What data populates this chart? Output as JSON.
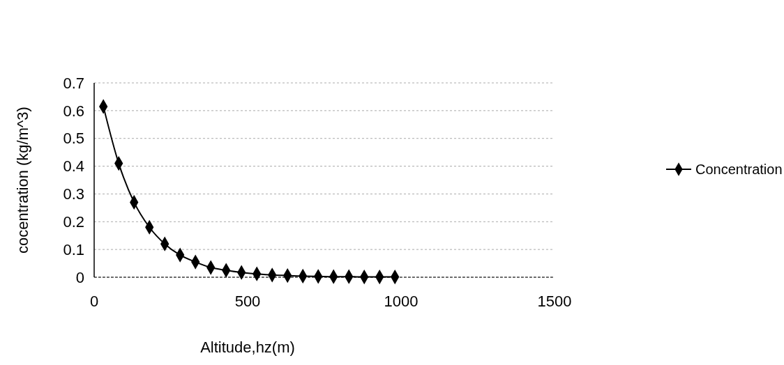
{
  "chart_data": {
    "type": "line",
    "xlabel": "Altitude,hz(m)",
    "ylabel": "cocentration (kg/m^3)",
    "x": [
      30,
      80,
      130,
      180,
      230,
      280,
      330,
      380,
      430,
      480,
      530,
      580,
      630,
      680,
      730,
      780,
      830,
      880,
      930,
      980
    ],
    "series": [
      {
        "name": "Concentration",
        "color": "#000000",
        "values": [
          0.615,
          0.41,
          0.27,
          0.18,
          0.12,
          0.08,
          0.055,
          0.035,
          0.025,
          0.017,
          0.012,
          0.008,
          0.006,
          0.004,
          0.003,
          0.002,
          0.002,
          0.001,
          0.001,
          0.001
        ]
      }
    ],
    "xlim": [
      0,
      1500
    ],
    "xticks": [
      0,
      500,
      1000,
      1500
    ],
    "ylim": [
      0,
      0.7
    ],
    "yticks": [
      0,
      0.1,
      0.2,
      0.3,
      0.4,
      0.5,
      0.6,
      0.7
    ],
    "grid": "y",
    "legend": "right",
    "marker": "diamond",
    "line_style": "solid"
  }
}
